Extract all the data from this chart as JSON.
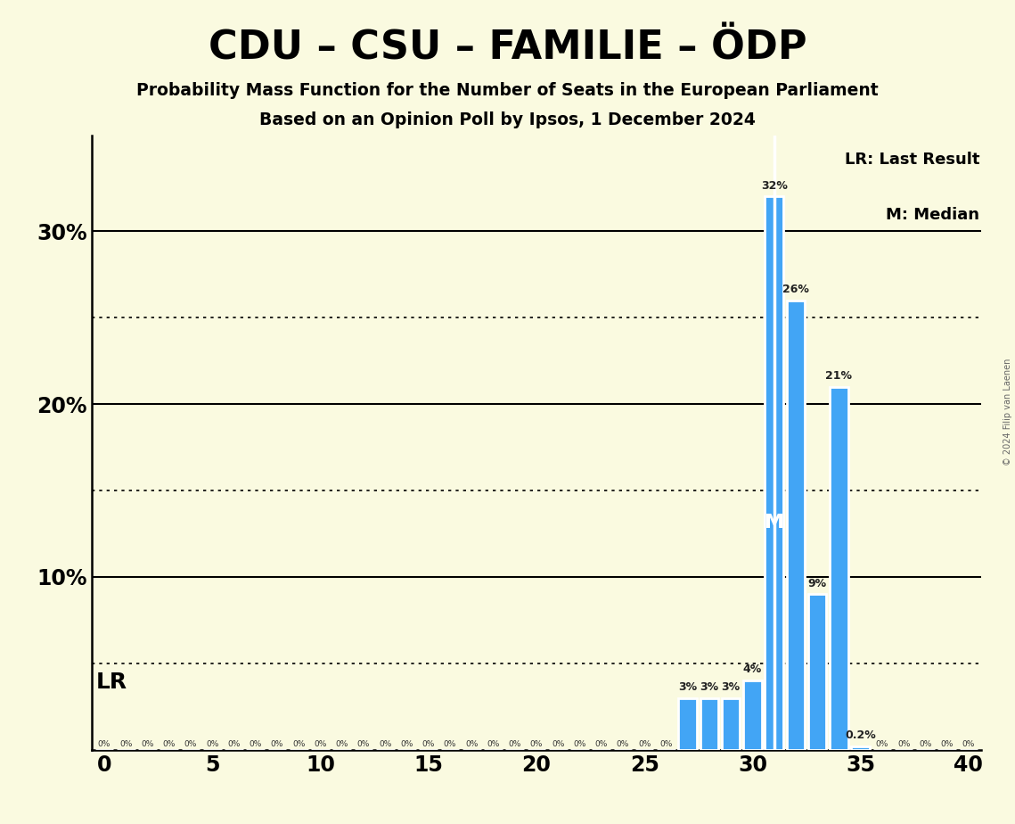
{
  "title": "CDU – CSU – FAMILIE – ÖDP",
  "subtitle1": "Probability Mass Function for the Number of Seats in the European Parliament",
  "subtitle2": "Based on an Opinion Poll by Ipsos, 1 December 2024",
  "copyright": "© 2024 Filip van Laenen",
  "background_color": "#FAFAE0",
  "bar_color": "#42A5F5",
  "bar_edge_color": "#FFFFFF",
  "x_min": 0,
  "x_max": 40,
  "y_min": 0,
  "y_max": 0.355,
  "yticks_solid": [
    0.1,
    0.2,
    0.3
  ],
  "ytick_solid_labels": [
    "10%",
    "20%",
    "30%"
  ],
  "yticks_dotted": [
    0.05,
    0.15,
    0.25
  ],
  "xticks": [
    0,
    5,
    10,
    15,
    20,
    25,
    30,
    35,
    40
  ],
  "lr_seat": 31,
  "median_seat": 31,
  "data": {
    "0": 0.0,
    "1": 0.0,
    "2": 0.0,
    "3": 0.0,
    "4": 0.0,
    "5": 0.0,
    "6": 0.0,
    "7": 0.0,
    "8": 0.0,
    "9": 0.0,
    "10": 0.0,
    "11": 0.0,
    "12": 0.0,
    "13": 0.0,
    "14": 0.0,
    "15": 0.0,
    "16": 0.0,
    "17": 0.0,
    "18": 0.0,
    "19": 0.0,
    "20": 0.0,
    "21": 0.0,
    "22": 0.0,
    "23": 0.0,
    "24": 0.0,
    "25": 0.0,
    "26": 0.0,
    "27": 0.03,
    "28": 0.03,
    "29": 0.03,
    "30": 0.04,
    "31": 0.32,
    "32": 0.26,
    "33": 0.09,
    "34": 0.21,
    "35": 0.002,
    "36": 0.0,
    "37": 0.0,
    "38": 0.0,
    "39": 0.0,
    "40": 0.0
  },
  "label_overrides": {
    "35": "0.2%"
  },
  "figsize": [
    11.39,
    9.24
  ],
  "dpi": 100
}
